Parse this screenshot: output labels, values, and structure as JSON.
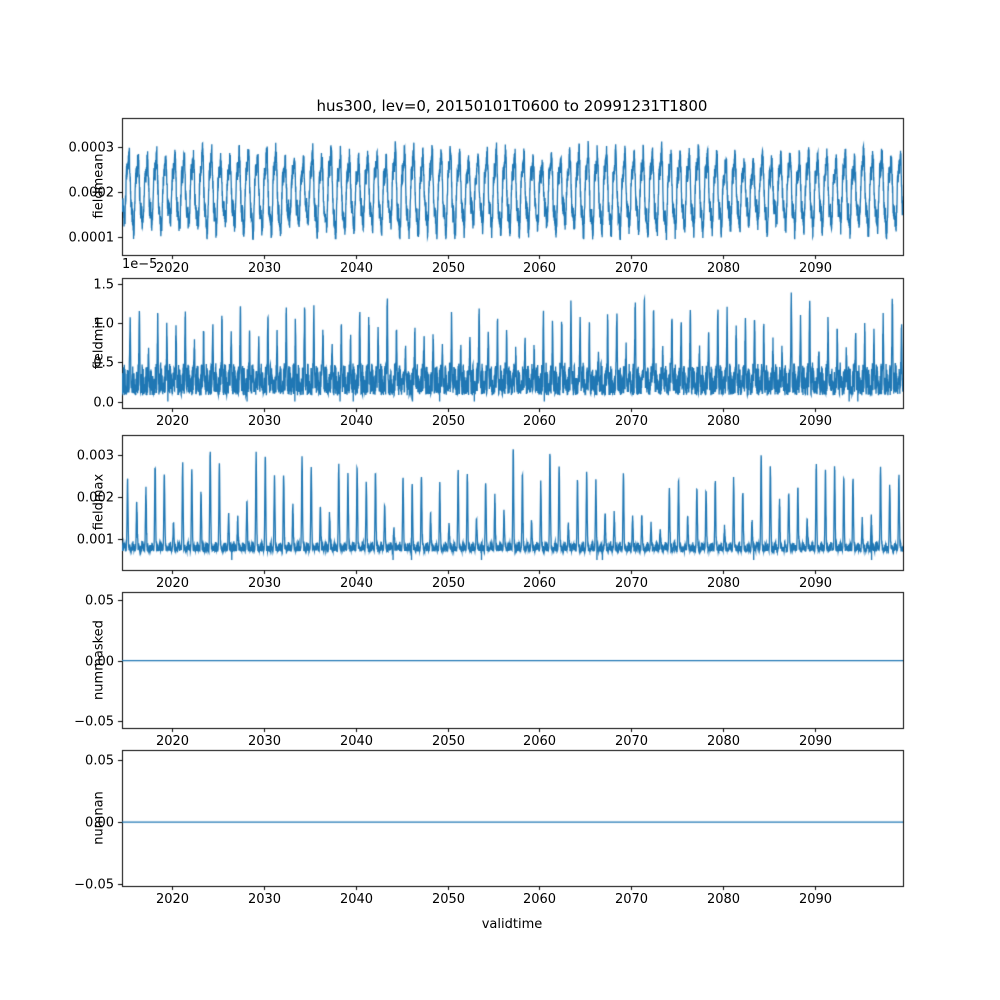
{
  "title": "hus300, lev=0, 20150101T0600 to 20991231T1800",
  "xlabel": "validtime",
  "line_color": "#1f77b4",
  "text_color": "#000000",
  "background": "#ffffff",
  "chart_data": [
    {
      "type": "line",
      "ylabel": "fieldmean",
      "description": "6-hourly field mean oscillating annually between ~0.0001 and ~0.00033",
      "x": {
        "label": "validtime",
        "range": [
          2014.55,
          2099.6
        ],
        "ticks": [
          2020,
          2030,
          2040,
          2050,
          2060,
          2070,
          2080,
          2090
        ]
      },
      "ylim": [
        6e-05,
        0.000365
      ],
      "yticks": {
        "values": [
          0.0001,
          0.0002,
          0.0003
        ],
        "labels": [
          "0.0001",
          "0.0002",
          "0.0003"
        ]
      },
      "series": [
        {
          "name": "fieldmean",
          "color": "#1f77b4",
          "model": {
            "kind": "seasonal_band",
            "seed": 7,
            "dt": 0.015,
            "base": 0.0002,
            "amp1": 7e-05,
            "amp2": 1.8e-05,
            "noise": 4.5e-05,
            "yearVar": 0.18,
            "clipMin": 9.5e-05,
            "clipMax": 0.000335
          }
        }
      ]
    },
    {
      "type": "line",
      "ylabel": "fieldmin",
      "offset_text": "1e−5",
      "description": "field minimum: dense band 0 to ~0.5e-5 with annual spikes up to ~1.5e-5",
      "x": {
        "label": "validtime",
        "range": [
          2014.55,
          2099.6
        ],
        "ticks": [
          2020,
          2030,
          2040,
          2050,
          2060,
          2070,
          2080,
          2090
        ]
      },
      "ylim": [
        -8e-07,
        1.57e-05
      ],
      "yticks": {
        "values": [
          0.0,
          5e-06,
          1e-05,
          1.5e-05
        ],
        "labels": [
          "0.0",
          "0.5",
          "1.0",
          "1.5"
        ]
      },
      "series": [
        {
          "name": "fieldmin",
          "color": "#1f77b4",
          "model": {
            "kind": "spiky",
            "seed": 11,
            "dt": 0.015,
            "base": 8e-07,
            "baseAmp": 4.2e-06,
            "spikePhase": -1.2,
            "spikePow": 12,
            "spikeMin": 4e-06,
            "spikeMax": 1.12e-05,
            "clipMin": 3e-08
          }
        }
      ]
    },
    {
      "type": "line",
      "ylabel": "fieldmax",
      "description": "field maximum: noisy baseline ~0.0007-0.001 with annual spikes to ~0.002-0.0032",
      "x": {
        "label": "validtime",
        "range": [
          2014.55,
          2099.6
        ],
        "ticks": [
          2020,
          2030,
          2040,
          2050,
          2060,
          2070,
          2080,
          2090
        ]
      },
      "ylim": [
        0.00026,
        0.00348
      ],
      "yticks": {
        "values": [
          0.001,
          0.002,
          0.003
        ],
        "labels": [
          "0.001",
          "0.002",
          "0.003"
        ]
      },
      "series": [
        {
          "name": "fieldmax",
          "color": "#1f77b4",
          "model": {
            "kind": "spiky",
            "seed": 23,
            "dt": 0.015,
            "base": 0.0007,
            "baseAmp": 0.00025,
            "spikePhase": 0.6,
            "spikePow": 10,
            "spikeMin": 0.0004,
            "spikeMax": 0.0023,
            "clipMin": 0.0005
          }
        }
      ]
    },
    {
      "type": "line",
      "ylabel": "nummasked",
      "description": "constant zero line",
      "x": {
        "label": "validtime",
        "range": [
          2014.55,
          2099.6
        ],
        "ticks": [
          2020,
          2030,
          2040,
          2050,
          2060,
          2070,
          2080,
          2090
        ]
      },
      "ylim": [
        -0.0555,
        0.0565
      ],
      "yticks": {
        "values": [
          -0.05,
          0.0,
          0.05
        ],
        "labels": [
          "−0.05",
          "0.00",
          "0.05"
        ]
      },
      "series": [
        {
          "name": "nummasked",
          "color": "#1f77b4",
          "model": {
            "kind": "constant",
            "value": 0
          }
        }
      ]
    },
    {
      "type": "line",
      "ylabel": "numnan",
      "description": "constant zero line",
      "x": {
        "label": "validtime",
        "range": [
          2014.55,
          2099.6
        ],
        "ticks": [
          2020,
          2030,
          2040,
          2050,
          2060,
          2070,
          2080,
          2090
        ]
      },
      "ylim": [
        -0.0515,
        0.058
      ],
      "yticks": {
        "values": [
          -0.05,
          0.0,
          0.05
        ],
        "labels": [
          "−0.05",
          "0.00",
          "0.05"
        ]
      },
      "series": [
        {
          "name": "numnan",
          "color": "#1f77b4",
          "model": {
            "kind": "constant",
            "value": 0
          }
        }
      ]
    }
  ]
}
